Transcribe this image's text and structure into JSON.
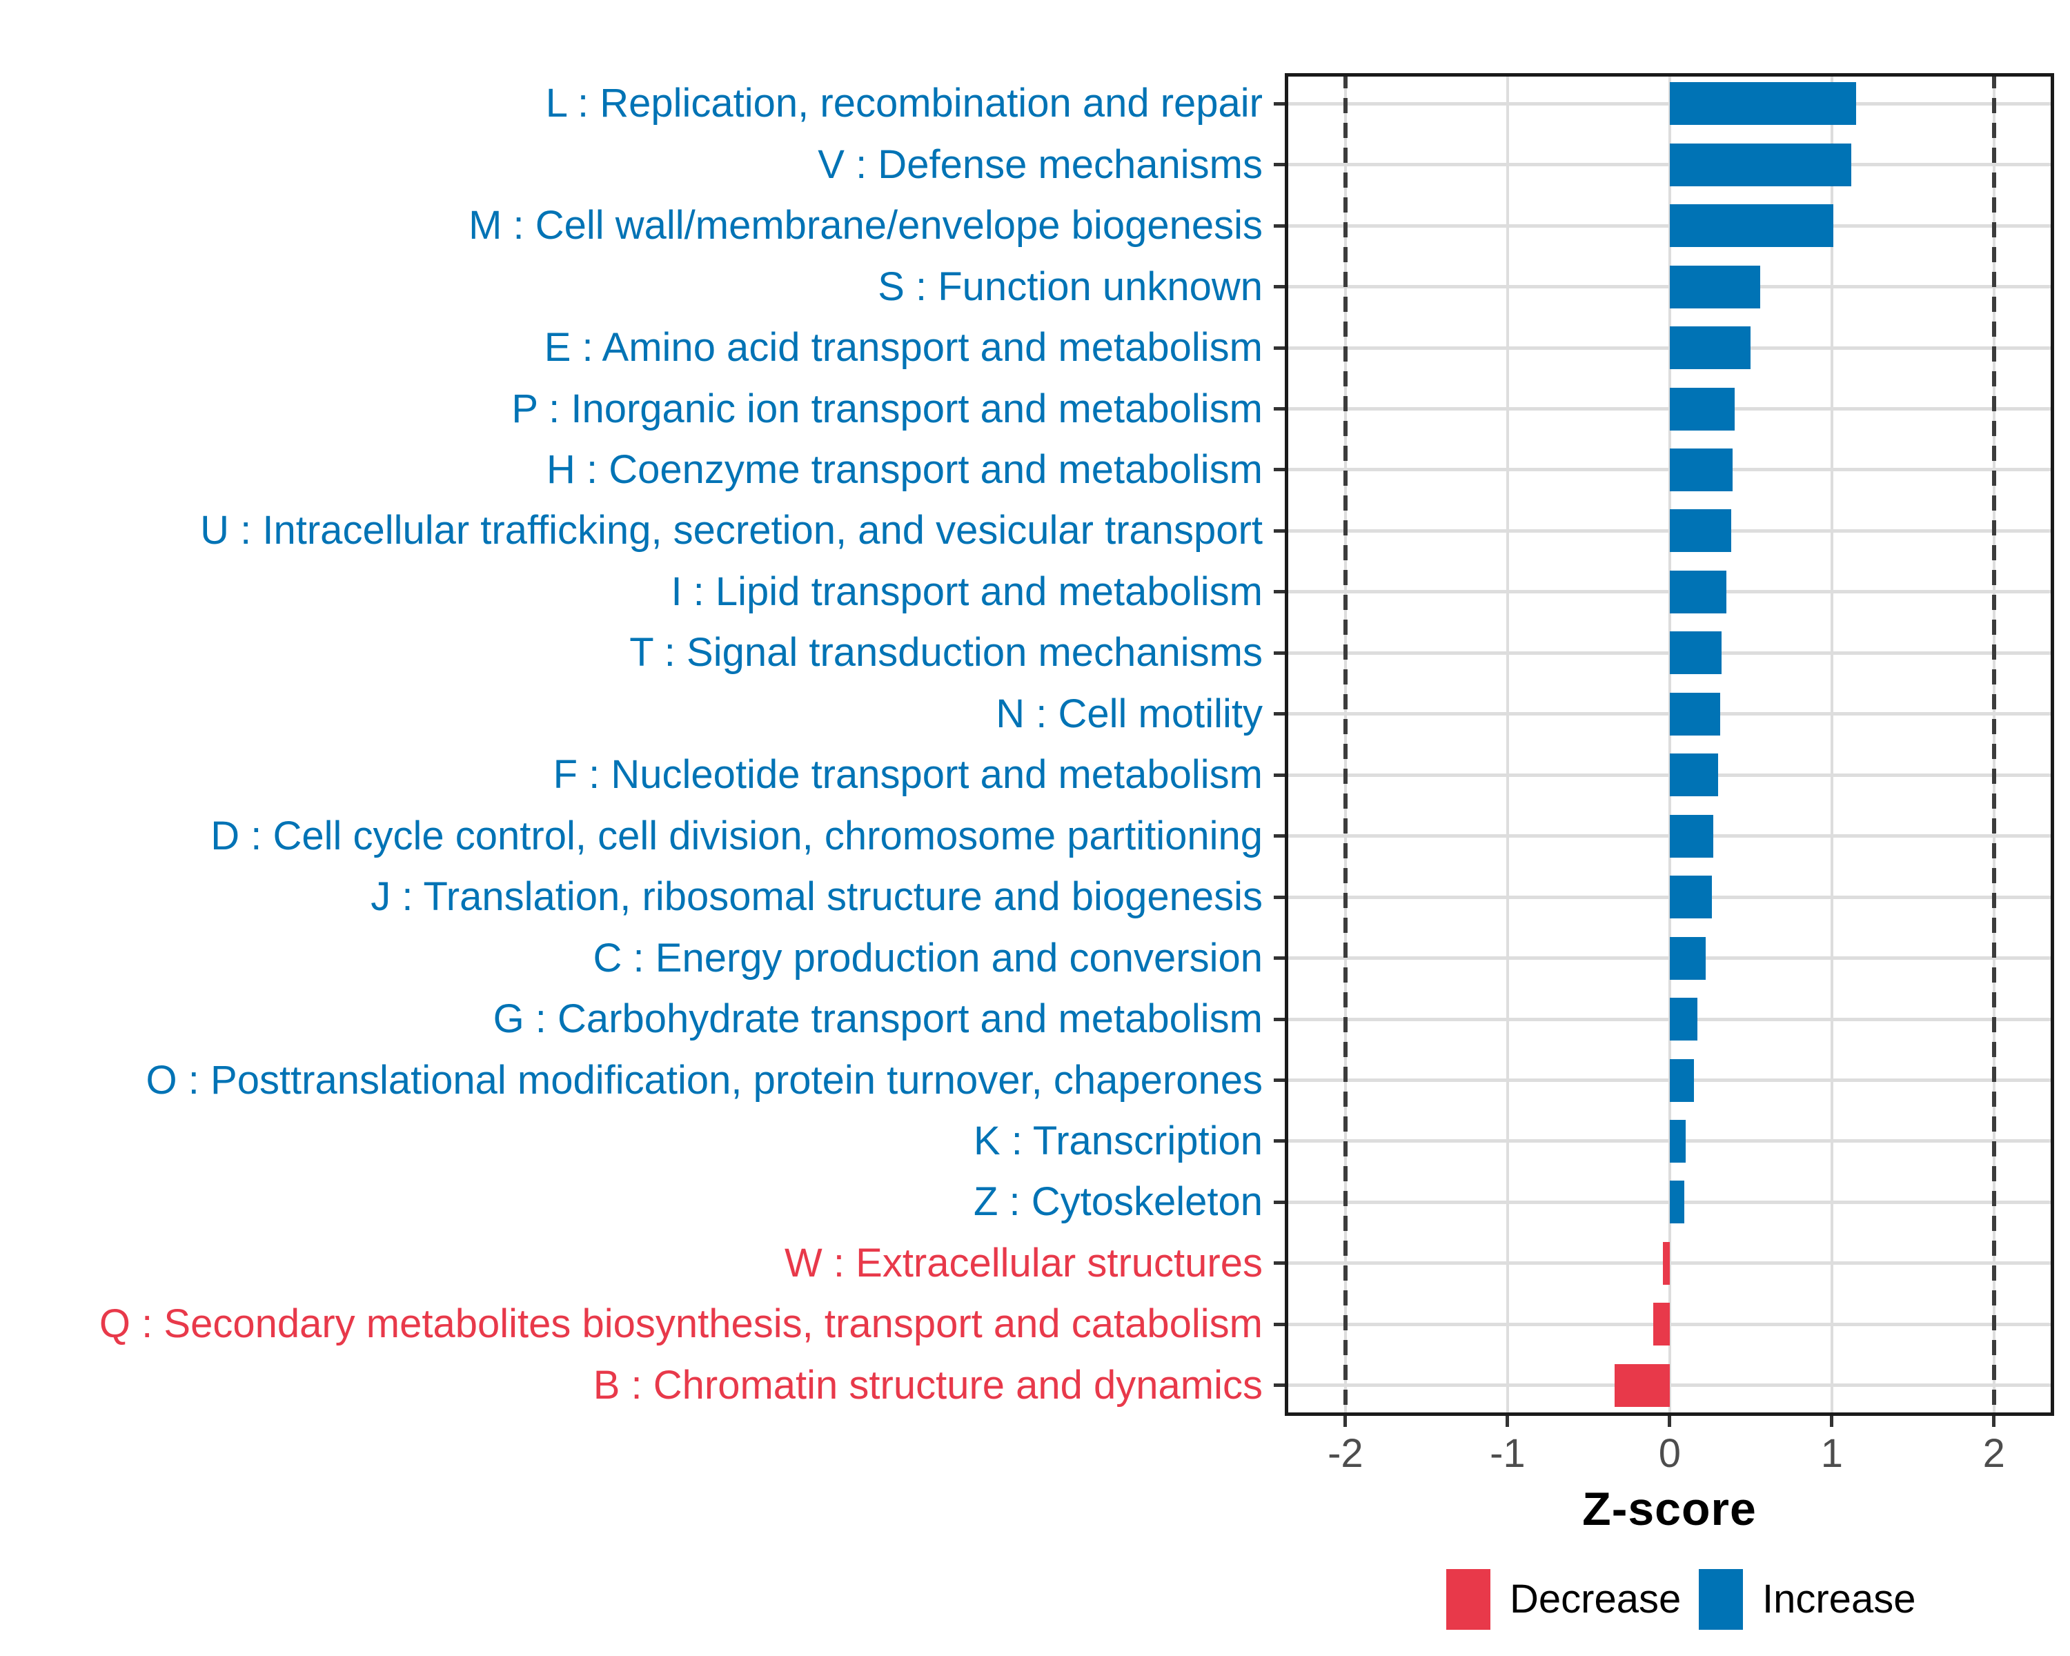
{
  "chart_data": {
    "type": "bar",
    "orientation": "horizontal",
    "title": "",
    "xlabel": "Z-score",
    "ylabel": "",
    "xlim": [
      -2.37,
      2.37
    ],
    "x_ticks": [
      "-2",
      "-1",
      "0",
      "1",
      "2"
    ],
    "x_tick_values": [
      -2,
      -1,
      0,
      1,
      2
    ],
    "reference_dashed_lines": [
      -2,
      2
    ],
    "grid": true,
    "legend_position": "bottom-right",
    "categories": [
      {
        "label": "L : Replication, recombination and repair",
        "value": 1.15,
        "direction": "Increase"
      },
      {
        "label": "V : Defense mechanisms",
        "value": 1.12,
        "direction": "Increase"
      },
      {
        "label": "M : Cell wall/membrane/envelope biogenesis",
        "value": 1.01,
        "direction": "Increase"
      },
      {
        "label": "S : Function unknown",
        "value": 0.56,
        "direction": "Increase"
      },
      {
        "label": "E : Amino acid transport and metabolism",
        "value": 0.5,
        "direction": "Increase"
      },
      {
        "label": "P : Inorganic ion transport and metabolism",
        "value": 0.4,
        "direction": "Increase"
      },
      {
        "label": "H : Coenzyme transport and metabolism",
        "value": 0.39,
        "direction": "Increase"
      },
      {
        "label": "U : Intracellular trafficking, secretion, and vesicular transport",
        "value": 0.38,
        "direction": "Increase"
      },
      {
        "label": "I : Lipid transport and metabolism",
        "value": 0.35,
        "direction": "Increase"
      },
      {
        "label": "T : Signal transduction mechanisms",
        "value": 0.32,
        "direction": "Increase"
      },
      {
        "label": "N : Cell motility",
        "value": 0.31,
        "direction": "Increase"
      },
      {
        "label": "F : Nucleotide transport and metabolism",
        "value": 0.3,
        "direction": "Increase"
      },
      {
        "label": "D : Cell cycle control, cell division, chromosome partitioning",
        "value": 0.27,
        "direction": "Increase"
      },
      {
        "label": "J : Translation, ribosomal structure and biogenesis",
        "value": 0.26,
        "direction": "Increase"
      },
      {
        "label": "C : Energy production and conversion",
        "value": 0.22,
        "direction": "Increase"
      },
      {
        "label": "G : Carbohydrate transport and metabolism",
        "value": 0.17,
        "direction": "Increase"
      },
      {
        "label": "O : Posttranslational modification, protein turnover, chaperones",
        "value": 0.15,
        "direction": "Increase"
      },
      {
        "label": "K : Transcription",
        "value": 0.1,
        "direction": "Increase"
      },
      {
        "label": "Z : Cytoskeleton",
        "value": 0.09,
        "direction": "Increase"
      },
      {
        "label": "W : Extracellular structures",
        "value": -0.04,
        "direction": "Decrease"
      },
      {
        "label": "Q : Secondary metabolites biosynthesis, transport and catabolism",
        "value": -0.1,
        "direction": "Decrease"
      },
      {
        "label": "B : Chromatin structure and dynamics",
        "value": -0.34,
        "direction": "Decrease"
      }
    ],
    "legend": [
      {
        "label": "Decrease",
        "color": "#E8394A"
      },
      {
        "label": "Increase",
        "color": "#0073B5"
      }
    ]
  },
  "colors": {
    "increase": "#0073B5",
    "decrease": "#E8394A",
    "grid": "#DDDDDD",
    "panel_border": "#1A1A1A",
    "dashed_line": "#3C3C3C",
    "tick": "#333333",
    "tick_label": "#4D4D4D",
    "axis_title": "#000000",
    "background": "#FFFFFF"
  }
}
